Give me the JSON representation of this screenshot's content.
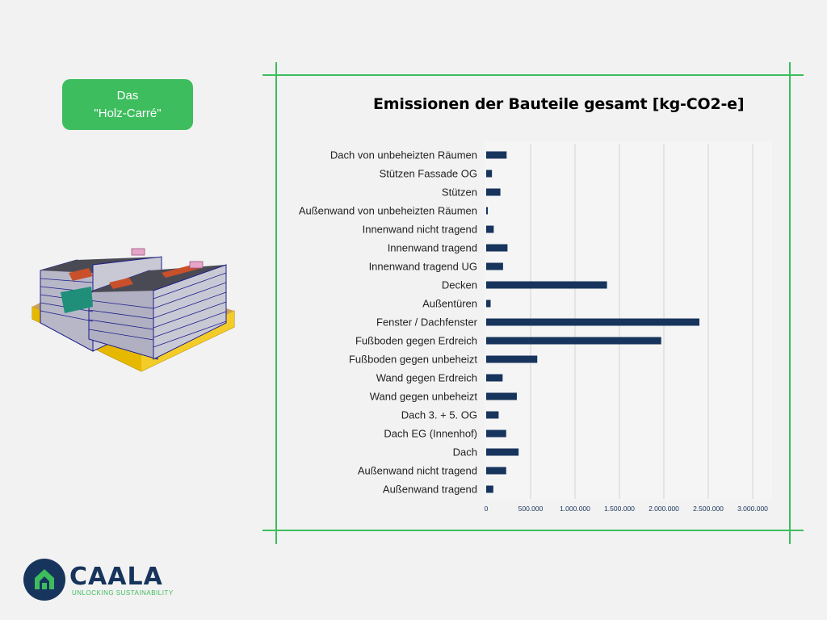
{
  "badge": {
    "line1": "Das",
    "line2": "\"Holz-Carré\""
  },
  "logo": {
    "name": "CAALA",
    "tagline": "UNLOCKING SUSTAINABILITY"
  },
  "colors": {
    "accent": "#3dbd5d",
    "bar": "#17345c",
    "brand": "#17345c"
  },
  "chart_data": {
    "type": "bar",
    "orientation": "horizontal",
    "title": "Emissionen der Bauteile gesamt [kg-CO2-e]",
    "xlim": [
      0,
      3000000
    ],
    "xticks": [
      "0",
      "500.000",
      "1.000.000",
      "1.500.000",
      "2.000.000",
      "2.500.000",
      "3.000.000"
    ],
    "grid": true,
    "categories": [
      "Dach von unbeheizten Räumen",
      "Stützen Fassade OG",
      "Stützen",
      "Außenwand von unbeheizten Räumen",
      "Innenwand nicht tragend",
      "Innenwand tragend",
      "Innenwand tragend UG",
      "Decken",
      "Außentüren",
      "Fenster / Dachfenster",
      "Fußboden gegen Erdreich",
      "Fußboden gegen unbeheizt",
      "Wand gegen Erdreich",
      "Wand gegen unbeheizt",
      "Dach 3. + 5. OG",
      "Dach EG (Innenhof)",
      "Dach",
      "Außenwand nicht tragend",
      "Außenwand tragend"
    ],
    "values": [
      230000,
      65000,
      160000,
      15000,
      85000,
      240000,
      190000,
      1360000,
      50000,
      2400000,
      1970000,
      575000,
      185000,
      345000,
      140000,
      225000,
      365000,
      225000,
      80000
    ]
  }
}
